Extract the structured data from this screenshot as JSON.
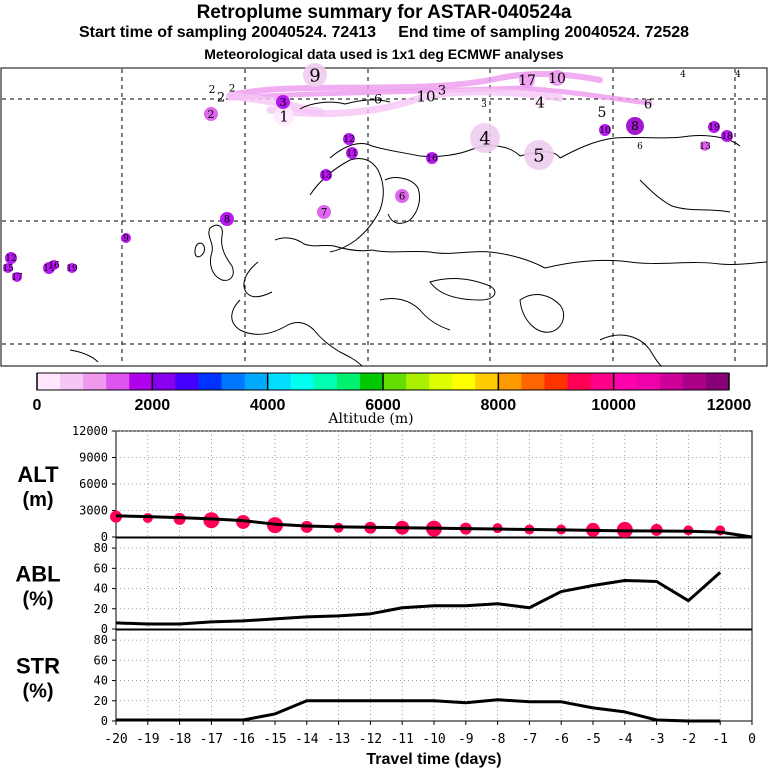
{
  "header": {
    "title": "Retroplume summary for ASTAR-040524a",
    "subtitle_start": "Start time of sampling 20040524. 72413",
    "subtitle_end": "End time of sampling 20040524. 72528",
    "subtitle_met": "Meteorological data used is 1x1 deg ECMWF analyses"
  },
  "colorbar": {
    "title": "Altitude (m)",
    "tick_labels": [
      "0",
      "2000",
      "4000",
      "6000",
      "8000",
      "10000",
      "12000"
    ],
    "colors": [
      "#ffe8ff",
      "#f6c6f6",
      "#ee99ee",
      "#dd55ee",
      "#b000ee",
      "#8800ee",
      "#4400ff",
      "#0033ff",
      "#0077ff",
      "#00aaff",
      "#00ddff",
      "#00ffee",
      "#00ffb0",
      "#00f070",
      "#00c800",
      "#66dd00",
      "#aaee00",
      "#ddff00",
      "#ffff00",
      "#ffcc00",
      "#ff9900",
      "#ff6600",
      "#ff3300",
      "#ff0055",
      "#ff0088",
      "#ff00aa",
      "#ee00aa",
      "#cc0099",
      "#aa0088",
      "#880077"
    ]
  },
  "map": {
    "labels": [
      {
        "t": "9",
        "c": "#eeccee"
      },
      {
        "t": "17",
        "c": "#ee99ee"
      },
      {
        "t": "10",
        "c": "#ee99ee"
      },
      {
        "t": "4",
        "c": "#ffffff"
      },
      {
        "t": "4",
        "c": "#ffffff"
      },
      {
        "t": "2",
        "c": "#ffe8ff"
      },
      {
        "t": "2",
        "c": "#ffe8ff"
      },
      {
        "t": "2",
        "c": "#ffe8ff"
      },
      {
        "t": "10",
        "c": "#ffe8ff"
      },
      {
        "t": "3",
        "c": "#ffe8ff"
      },
      {
        "t": "6",
        "c": "#ffe8ff"
      },
      {
        "t": "3",
        "c": "#ffe8ff"
      },
      {
        "t": "4",
        "c": "#ffe8ff"
      },
      {
        "t": "5",
        "c": "#ffe8ff"
      },
      {
        "t": "6",
        "c": "#ffe8ff"
      },
      {
        "t": "1",
        "c": "#ffe8ff"
      },
      {
        "t": "3",
        "c": "#b000ee"
      },
      {
        "t": "2",
        "c": "#dd55ee"
      },
      {
        "t": "4",
        "c": "#eeccee"
      },
      {
        "t": "5",
        "c": "#eeccee"
      },
      {
        "t": "10",
        "c": "#b000ee"
      },
      {
        "t": "8",
        "c": "#9900cc"
      },
      {
        "t": "6",
        "c": "#ffffff"
      },
      {
        "t": "19",
        "c": "#b000ee"
      },
      {
        "t": "18",
        "c": "#b000ee"
      },
      {
        "t": "13",
        "c": "#dd55ee"
      },
      {
        "t": "12",
        "c": "#b000ee"
      },
      {
        "t": "11",
        "c": "#b000ee"
      },
      {
        "t": "16",
        "c": "#b000ee"
      },
      {
        "t": "13",
        "c": "#b000ee"
      },
      {
        "t": "6",
        "c": "#dd55ee"
      },
      {
        "t": "7",
        "c": "#dd55ee"
      },
      {
        "t": "8",
        "c": "#b000ee"
      },
      {
        "t": "9",
        "c": "#b000ee"
      },
      {
        "t": "12",
        "c": "#b000ee"
      },
      {
        "t": "15",
        "c": "#b000ee"
      },
      {
        "t": "17",
        "c": "#b000ee"
      },
      {
        "t": "14",
        "c": "#b000ee"
      },
      {
        "t": "16",
        "c": "#b000ee"
      },
      {
        "t": "19",
        "c": "#b000ee"
      }
    ]
  },
  "chart_data": [
    {
      "type": "scatter",
      "name": "ALT",
      "ylabel": "ALT (m)",
      "ylabel_line1": "ALT",
      "ylabel_line2": "(m)",
      "ylim": [
        0,
        12000
      ],
      "yticks": [
        0,
        3000,
        6000,
        9000,
        12000
      ],
      "ytick_labels": [
        "0",
        "3000",
        "6000",
        "9000",
        "12000"
      ],
      "x": [
        -20,
        -19,
        -18,
        -17,
        -16,
        -15,
        -14,
        -13,
        -12,
        -11,
        -10,
        -9,
        -8,
        -7,
        -6,
        -5,
        -4,
        -3,
        -2,
        -1,
        0
      ],
      "line_values": [
        2400,
        2300,
        2200,
        2050,
        1850,
        1450,
        1250,
        1150,
        1100,
        1050,
        1000,
        950,
        900,
        850,
        800,
        750,
        700,
        680,
        650,
        550,
        0
      ],
      "point_values": [
        2300,
        2150,
        2050,
        1900,
        1700,
        1350,
        1150,
        1050,
        1050,
        1050,
        950,
        950,
        1000,
        850,
        850,
        800,
        800,
        800,
        750,
        750
      ],
      "point_color": "#ff0055"
    },
    {
      "type": "line",
      "name": "ABL",
      "ylabel": "ABL (%)",
      "ylabel_line1": "ABL",
      "ylabel_line2": "(%)",
      "ylim": [
        0,
        90
      ],
      "yticks": [
        0,
        20,
        40,
        60,
        80
      ],
      "ytick_labels": [
        "0",
        "20",
        "40",
        "60",
        "80"
      ],
      "x": [
        -20,
        -19,
        -18,
        -17,
        -16,
        -15,
        -14,
        -13,
        -12,
        -11,
        -10,
        -9,
        -8,
        -7,
        -6,
        -5,
        -4,
        -3,
        -2,
        -1
      ],
      "values": [
        6,
        5,
        5,
        7,
        8,
        10,
        12,
        13,
        15,
        21,
        23,
        23,
        25,
        21,
        37,
        43,
        48,
        47,
        28,
        56
      ]
    },
    {
      "type": "line",
      "name": "STR",
      "ylabel": "STR (%)",
      "ylabel_line1": "STR",
      "ylabel_line2": "(%)",
      "ylim": [
        0,
        90
      ],
      "yticks": [
        0,
        20,
        40,
        60,
        80
      ],
      "ytick_labels": [
        "0",
        "20",
        "40",
        "60",
        "80"
      ],
      "x": [
        -20,
        -19,
        -18,
        -17,
        -16,
        -15,
        -14,
        -13,
        -12,
        -11,
        -10,
        -9,
        -8,
        -7,
        -6,
        -5,
        -4,
        -3,
        -2,
        -1
      ],
      "values": [
        1,
        1,
        1,
        1,
        1,
        7,
        20,
        20,
        20,
        20,
        20,
        18,
        21,
        19,
        19,
        13,
        9,
        1,
        0,
        0
      ],
      "xlabel": "Travel time (days)",
      "xtick_labels": [
        "-20",
        "-19",
        "-18",
        "-17",
        "-16",
        "-15",
        "-14",
        "-13",
        "-12",
        "-11",
        "-10",
        "-9",
        "-8",
        "-7",
        "-6",
        "-5",
        "-4",
        "-3",
        "-2",
        "-1",
        "0"
      ]
    }
  ]
}
